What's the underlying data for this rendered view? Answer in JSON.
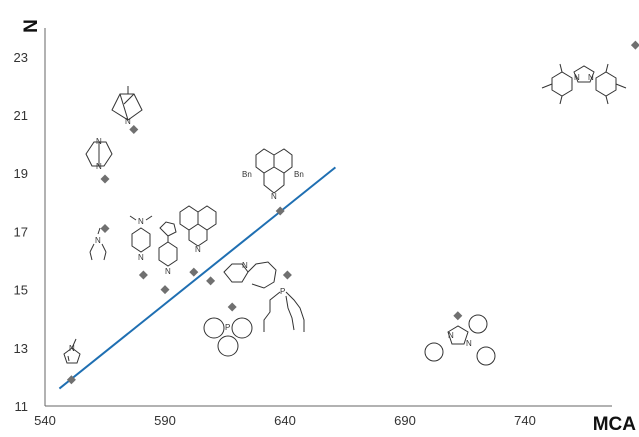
{
  "chart_data": {
    "type": "scatter",
    "title": "",
    "xlabel": "MCA",
    "ylabel": "N",
    "xlim": [
      540,
      780
    ],
    "ylim": [
      11,
      24
    ],
    "x_ticks": [
      "540",
      "590",
      "640",
      "690",
      "740"
    ],
    "y_ticks": [
      "11",
      "13",
      "15",
      "17",
      "19",
      "21",
      "23"
    ],
    "grid": false,
    "legend": "none",
    "series": [
      {
        "marker": "diamond",
        "color": "#707070",
        "points": [
          {
            "x": 551,
            "y": 11.9
          },
          {
            "x": 565,
            "y": 17.1
          },
          {
            "x": 565,
            "y": 18.8
          },
          {
            "x": 577,
            "y": 20.5
          },
          {
            "x": 581,
            "y": 15.5
          },
          {
            "x": 590,
            "y": 15.0
          },
          {
            "x": 602,
            "y": 15.6
          },
          {
            "x": 609,
            "y": 15.3
          },
          {
            "x": 618,
            "y": 14.4
          },
          {
            "x": 638,
            "y": 17.7
          },
          {
            "x": 641,
            "y": 15.5
          },
          {
            "x": 712,
            "y": 14.1
          },
          {
            "x": 786,
            "y": 23.4
          }
        ]
      }
    ],
    "trendline": {
      "color": "#1f6fb2",
      "x": [
        546,
        661
      ],
      "y": [
        11.6,
        19.2
      ]
    },
    "annotations": {
      "bn_left": "Bn",
      "bn_right": "Bn",
      "n": "N",
      "p": "P"
    }
  }
}
